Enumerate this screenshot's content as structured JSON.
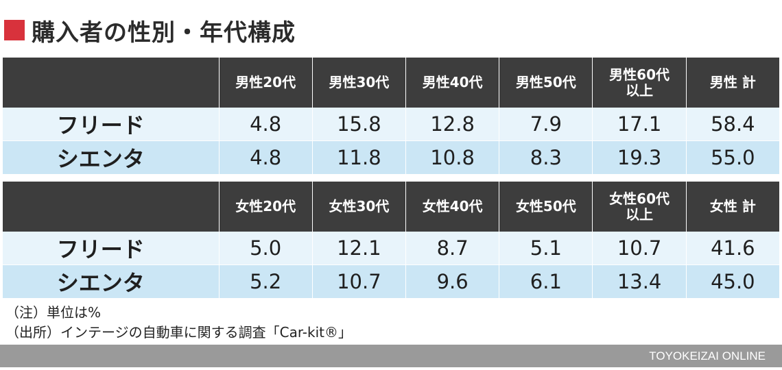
{
  "title": "購入者の性別・年代構成",
  "colors": {
    "title_mark": "#d8323c",
    "header_bg": "#3d3d3d",
    "row_light": "#e8f4fb",
    "row_blue": "#cbe6f5",
    "footer_bg": "#9a9a9a"
  },
  "tables": [
    {
      "headers": [
        "",
        "男性20代",
        "男性30代",
        "男性40代",
        "男性50代",
        "男性60代\n以上",
        "男性 計"
      ],
      "rows": [
        {
          "label": "フリード",
          "values": [
            "4.8",
            "15.8",
            "12.8",
            "7.9",
            "17.1",
            "58.4"
          ]
        },
        {
          "label": "シエンタ",
          "values": [
            "4.8",
            "11.8",
            "10.8",
            "8.3",
            "19.3",
            "55.0"
          ]
        }
      ]
    },
    {
      "headers": [
        "",
        "女性20代",
        "女性30代",
        "女性40代",
        "女性50代",
        "女性60代\n以上",
        "女性 計"
      ],
      "rows": [
        {
          "label": "フリード",
          "values": [
            "5.0",
            "12.1",
            "8.7",
            "5.1",
            "10.7",
            "41.6"
          ]
        },
        {
          "label": "シエンタ",
          "values": [
            "5.2",
            "10.7",
            "9.6",
            "6.1",
            "13.4",
            "45.0"
          ]
        }
      ]
    }
  ],
  "notes": [
    "（注）単位は%",
    "（出所）インテージの自動車に関する調査「Car-kit®」"
  ],
  "footer": "TOYOKEIZAI ONLINE",
  "chart_data": {
    "type": "table",
    "title": "購入者の性別・年代構成",
    "columns_male": [
      "男性20代",
      "男性30代",
      "男性40代",
      "男性50代",
      "男性60代以上",
      "男性 計"
    ],
    "columns_female": [
      "女性20代",
      "女性30代",
      "女性40代",
      "女性50代",
      "女性60代以上",
      "女性 計"
    ],
    "series": [
      {
        "name": "フリード",
        "male": [
          4.8,
          15.8,
          12.8,
          7.9,
          17.1,
          58.4
        ],
        "female": [
          5.0,
          12.1,
          8.7,
          5.1,
          10.7,
          41.6
        ]
      },
      {
        "name": "シエンタ",
        "male": [
          4.8,
          11.8,
          10.8,
          8.3,
          19.3,
          55.0
        ],
        "female": [
          5.2,
          10.7,
          9.6,
          6.1,
          13.4,
          45.0
        ]
      }
    ],
    "unit": "%"
  }
}
